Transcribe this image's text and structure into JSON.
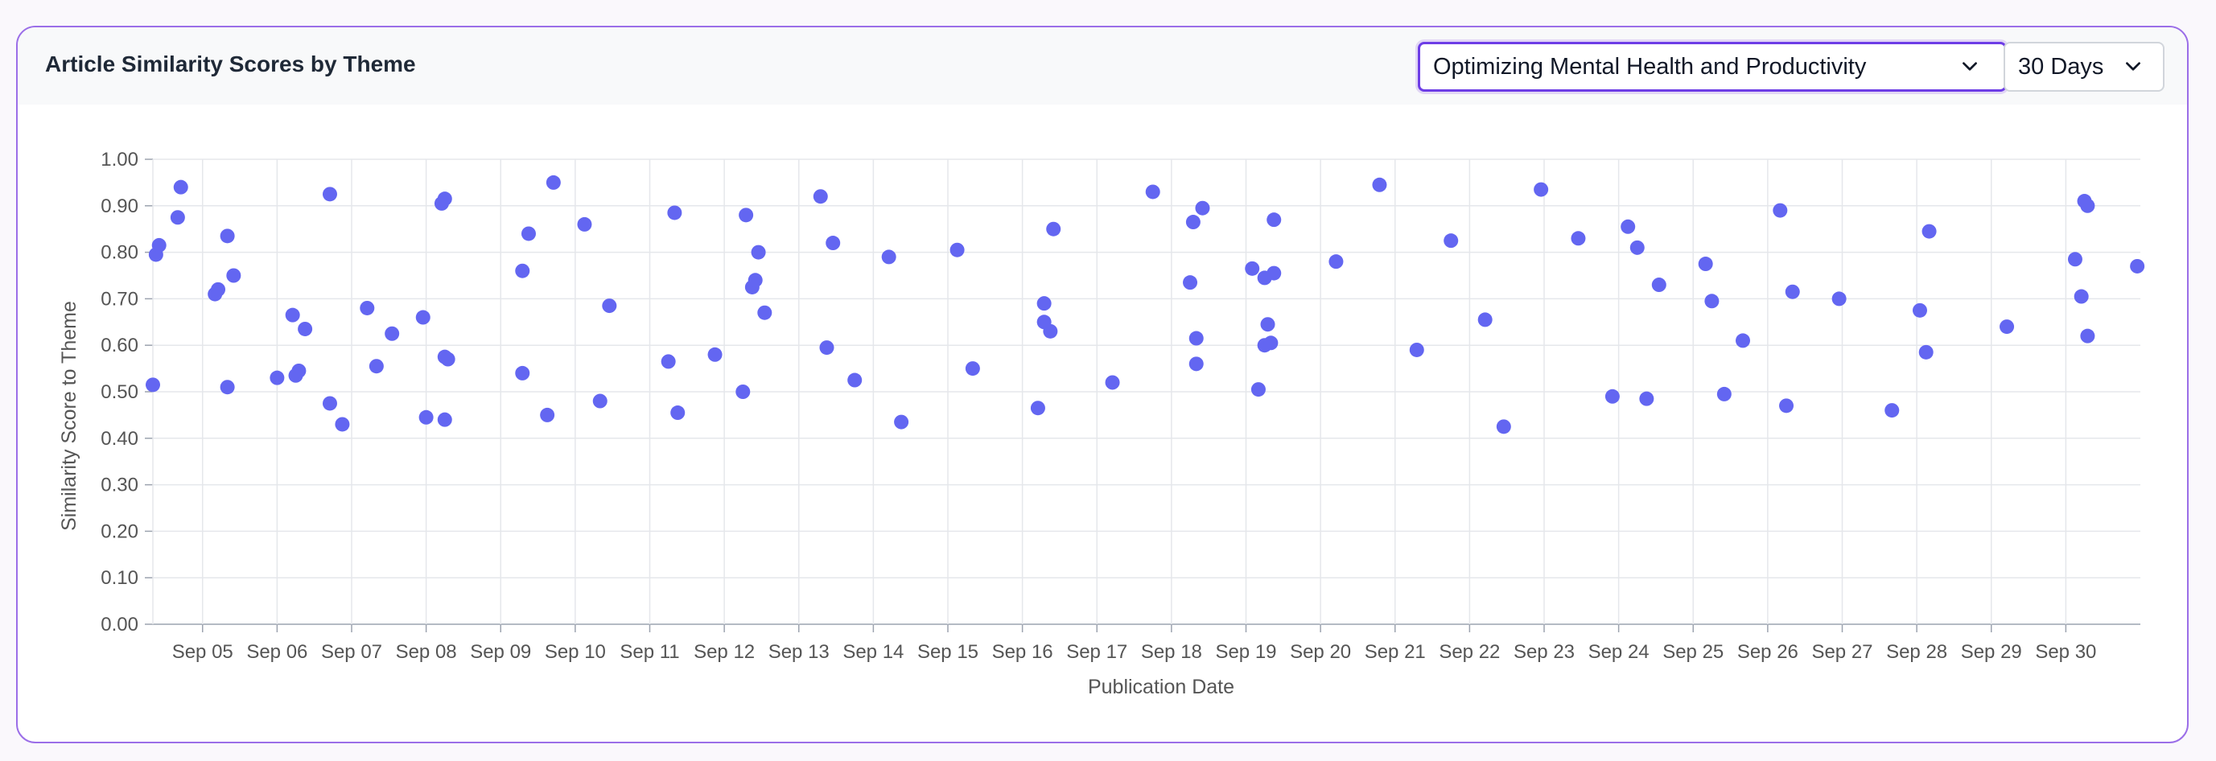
{
  "header": {
    "title": "Article Similarity Scores by Theme",
    "theme_select": {
      "value": "Optimizing Mental Health and Productivity",
      "icon": "chevron-down-icon"
    },
    "range_select": {
      "value": "30 Days",
      "icon": "chevron-down-icon"
    }
  },
  "colors": {
    "accent": "#6d3de6",
    "point": "#6366f1",
    "grid": "#e5e7eb",
    "axis": "#9ca3af"
  },
  "chart_data": {
    "type": "scatter",
    "title": "",
    "xlabel": "Publication Date",
    "ylabel": "Similarity Score to Theme",
    "ylim": [
      0,
      1
    ],
    "yticks": [
      "0.00",
      "0.10",
      "0.20",
      "0.30",
      "0.40",
      "0.50",
      "0.60",
      "0.70",
      "0.80",
      "0.90",
      "1.00"
    ],
    "xticks": [
      "Sep 05",
      "Sep 06",
      "Sep 07",
      "Sep 08",
      "Sep 09",
      "Sep 10",
      "Sep 11",
      "Sep 12",
      "Sep 13",
      "Sep 14",
      "Sep 15",
      "Sep 16",
      "Sep 17",
      "Sep 18",
      "Sep 19",
      "Sep 20",
      "Sep 21",
      "Sep 22",
      "Sep 23",
      "Sep 24",
      "Sep 25",
      "Sep 26",
      "Sep 27",
      "Sep 28",
      "Sep 29",
      "Sep 30"
    ],
    "xlim": [
      "Sep 04 08:00",
      "Oct 01 00:00"
    ],
    "grid": true,
    "series": [
      {
        "points": [
          [
            "Sep 04 08:00",
            0.515
          ],
          [
            "Sep 04 09:00",
            0.795
          ],
          [
            "Sep 04 10:00",
            0.815
          ],
          [
            "Sep 04 16:00",
            0.875
          ],
          [
            "Sep 04 17:00",
            0.94
          ],
          [
            "Sep 05 04:00",
            0.71
          ],
          [
            "Sep 05 05:00",
            0.72
          ],
          [
            "Sep 05 08:00",
            0.51
          ],
          [
            "Sep 05 08:00",
            0.835
          ],
          [
            "Sep 05 10:00",
            0.75
          ],
          [
            "Sep 06 00:00",
            0.53
          ],
          [
            "Sep 06 05:00",
            0.665
          ],
          [
            "Sep 06 06:00",
            0.535
          ],
          [
            "Sep 06 07:00",
            0.545
          ],
          [
            "Sep 06 09:00",
            0.635
          ],
          [
            "Sep 06 17:00",
            0.475
          ],
          [
            "Sep 06 17:00",
            0.925
          ],
          [
            "Sep 06 21:00",
            0.43
          ],
          [
            "Sep 07 05:00",
            0.68
          ],
          [
            "Sep 07 08:00",
            0.555
          ],
          [
            "Sep 07 13:00",
            0.625
          ],
          [
            "Sep 07 23:00",
            0.66
          ],
          [
            "Sep 08 00:00",
            0.445
          ],
          [
            "Sep 08 05:00",
            0.905
          ],
          [
            "Sep 08 06:00",
            0.915
          ],
          [
            "Sep 08 06:00",
            0.44
          ],
          [
            "Sep 08 06:00",
            0.575
          ],
          [
            "Sep 08 07:00",
            0.57
          ],
          [
            "Sep 09 07:00",
            0.54
          ],
          [
            "Sep 09 07:00",
            0.76
          ],
          [
            "Sep 09 09:00",
            0.84
          ],
          [
            "Sep 09 15:00",
            0.45
          ],
          [
            "Sep 09 17:00",
            0.95
          ],
          [
            "Sep 10 03:00",
            0.86
          ],
          [
            "Sep 10 08:00",
            0.48
          ],
          [
            "Sep 10 11:00",
            0.685
          ],
          [
            "Sep 11 06:00",
            0.565
          ],
          [
            "Sep 11 08:00",
            0.885
          ],
          [
            "Sep 11 09:00",
            0.455
          ],
          [
            "Sep 11 21:00",
            0.58
          ],
          [
            "Sep 12 06:00",
            0.5
          ],
          [
            "Sep 12 07:00",
            0.88
          ],
          [
            "Sep 12 09:00",
            0.725
          ],
          [
            "Sep 12 10:00",
            0.74
          ],
          [
            "Sep 12 11:00",
            0.8
          ],
          [
            "Sep 12 13:00",
            0.67
          ],
          [
            "Sep 13 07:00",
            0.92
          ],
          [
            "Sep 13 09:00",
            0.595
          ],
          [
            "Sep 13 11:00",
            0.82
          ],
          [
            "Sep 13 18:00",
            0.525
          ],
          [
            "Sep 14 05:00",
            0.79
          ],
          [
            "Sep 14 09:00",
            0.435
          ],
          [
            "Sep 15 03:00",
            0.805
          ],
          [
            "Sep 15 08:00",
            0.55
          ],
          [
            "Sep 16 05:00",
            0.465
          ],
          [
            "Sep 16 07:00",
            0.65
          ],
          [
            "Sep 16 07:00",
            0.69
          ],
          [
            "Sep 16 09:00",
            0.63
          ],
          [
            "Sep 16 10:00",
            0.85
          ],
          [
            "Sep 17 05:00",
            0.52
          ],
          [
            "Sep 17 18:00",
            0.93
          ],
          [
            "Sep 18 06:00",
            0.735
          ],
          [
            "Sep 18 07:00",
            0.865
          ],
          [
            "Sep 18 08:00",
            0.56
          ],
          [
            "Sep 18 08:00",
            0.615
          ],
          [
            "Sep 18 10:00",
            0.895
          ],
          [
            "Sep 19 02:00",
            0.765
          ],
          [
            "Sep 19 04:00",
            0.505
          ],
          [
            "Sep 19 06:00",
            0.6
          ],
          [
            "Sep 19 06:00",
            0.745
          ],
          [
            "Sep 19 07:00",
            0.645
          ],
          [
            "Sep 19 08:00",
            0.605
          ],
          [
            "Sep 19 09:00",
            0.755
          ],
          [
            "Sep 19 09:00",
            0.87
          ],
          [
            "Sep 20 05:00",
            0.78
          ],
          [
            "Sep 20 19:00",
            0.945
          ],
          [
            "Sep 21 07:00",
            0.59
          ],
          [
            "Sep 21 18:00",
            0.825
          ],
          [
            "Sep 22 05:00",
            0.655
          ],
          [
            "Sep 22 11:00",
            0.425
          ],
          [
            "Sep 22 23:00",
            0.935
          ],
          [
            "Sep 23 11:00",
            0.83
          ],
          [
            "Sep 23 22:00",
            0.49
          ],
          [
            "Sep 24 03:00",
            0.855
          ],
          [
            "Sep 24 06:00",
            0.81
          ],
          [
            "Sep 24 09:00",
            0.485
          ],
          [
            "Sep 24 13:00",
            0.73
          ],
          [
            "Sep 25 04:00",
            0.775
          ],
          [
            "Sep 25 06:00",
            0.695
          ],
          [
            "Sep 25 10:00",
            0.495
          ],
          [
            "Sep 25 16:00",
            0.61
          ],
          [
            "Sep 26 04:00",
            0.89
          ],
          [
            "Sep 26 06:00",
            0.47
          ],
          [
            "Sep 26 08:00",
            0.715
          ],
          [
            "Sep 26 23:00",
            0.7
          ],
          [
            "Sep 27 16:00",
            0.46
          ],
          [
            "Sep 28 01:00",
            0.675
          ],
          [
            "Sep 28 03:00",
            0.585
          ],
          [
            "Sep 28 04:00",
            0.845
          ],
          [
            "Sep 29 05:00",
            0.64
          ],
          [
            "Sep 30 03:00",
            0.785
          ],
          [
            "Sep 30 05:00",
            0.705
          ],
          [
            "Sep 30 06:00",
            0.91
          ],
          [
            "Sep 30 07:00",
            0.62
          ],
          [
            "Sep 30 07:00",
            0.9
          ],
          [
            "Sep 30 23:00",
            0.77
          ]
        ]
      }
    ]
  }
}
